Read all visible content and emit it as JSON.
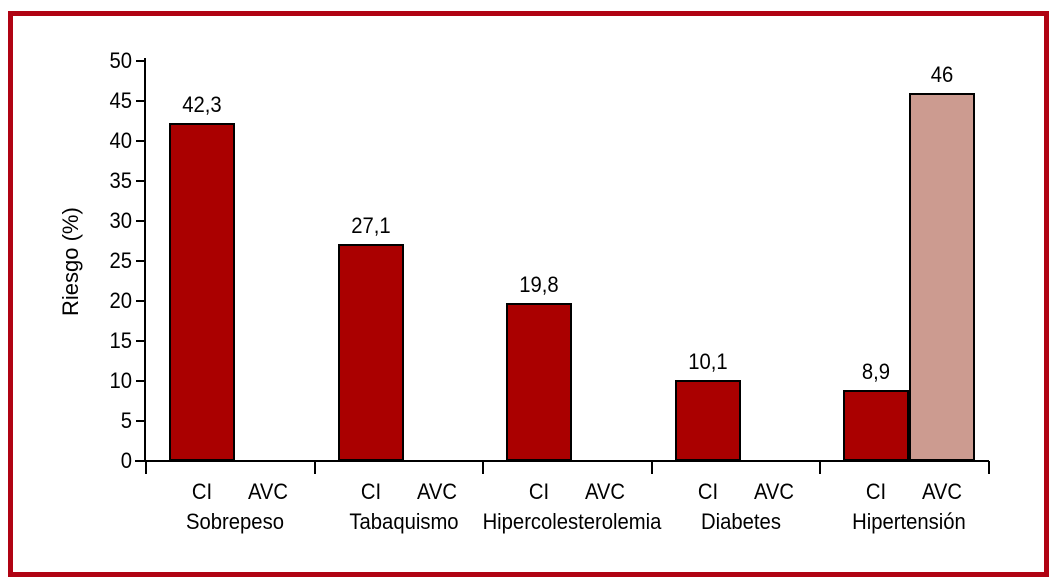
{
  "chart_data": {
    "type": "bar",
    "title": "",
    "xlabel": "",
    "ylabel": "Riesgo (%)",
    "ylim": [
      0,
      50
    ],
    "yticks": [
      0,
      5,
      10,
      15,
      20,
      25,
      30,
      35,
      40,
      45,
      50
    ],
    "grid": false,
    "legend_position": "none",
    "categories": [
      "Sobrepeso",
      "Tabaquismo",
      "Hipercolesterolemia",
      "Diabetes",
      "Hipertensión"
    ],
    "series": [
      {
        "name": "CI",
        "color": "#aa0000",
        "values": [
          42.3,
          27.1,
          19.8,
          10.1,
          8.9
        ],
        "value_labels": [
          "42,3",
          "27,1",
          "19,8",
          "10,1",
          "8,9"
        ]
      },
      {
        "name": "AVC",
        "color": "#cc9b90",
        "values": [
          0,
          0,
          0,
          0,
          46
        ],
        "value_labels": [
          "",
          "",
          "",
          "",
          "46"
        ]
      }
    ]
  },
  "frame": {
    "border_color": "#b00313"
  },
  "colors": {
    "axis": "#000000",
    "bar_outline": "#000000",
    "background": "#ffffff"
  }
}
